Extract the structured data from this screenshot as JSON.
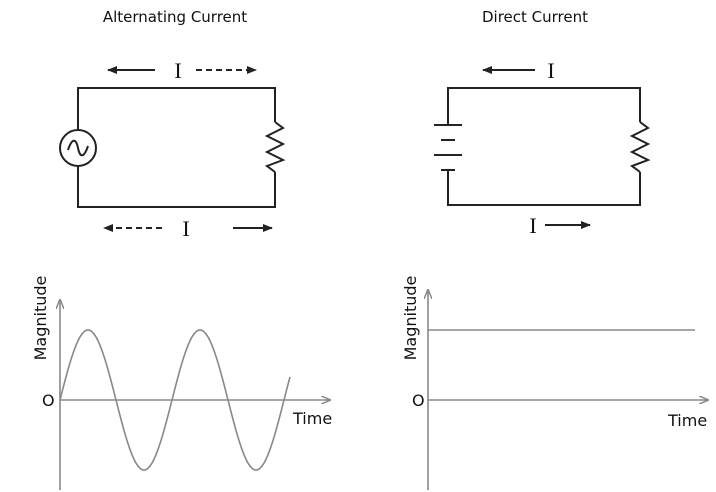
{
  "panels": [
    {
      "title": "Alternating Current",
      "current_labels": [
        "I",
        "I"
      ],
      "graph": {
        "y_label": "Magnitude",
        "x_label": "Time",
        "origin": "O"
      }
    },
    {
      "title": "Direct Current",
      "current_labels": [
        "I",
        "I"
      ],
      "graph": {
        "y_label": "Magnitude",
        "x_label": "Time",
        "origin": "O"
      }
    }
  ]
}
